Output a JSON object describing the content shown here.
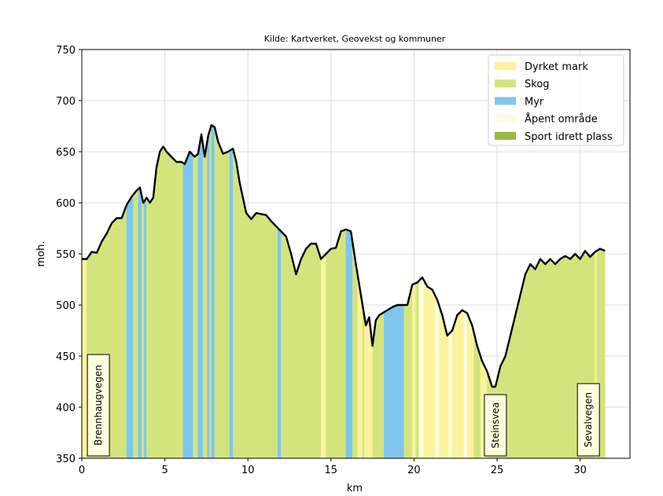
{
  "chart_data": {
    "type": "area",
    "title": "Kilde: Kartverket, Geovekst og kommuner",
    "xlabel": "km",
    "ylabel": "moh.",
    "xlim": [
      0,
      33
    ],
    "ylim": [
      350,
      750
    ],
    "xticks": [
      0,
      5,
      10,
      15,
      20,
      25,
      30
    ],
    "yticks": [
      350,
      400,
      450,
      500,
      550,
      600,
      650,
      700,
      750
    ],
    "grid": true,
    "legend_position": "top-right",
    "legend": [
      {
        "label": "Dyrket mark",
        "color": "#fbf39e"
      },
      {
        "label": "Skog",
        "color": "#d4e47c"
      },
      {
        "label": "Myr",
        "color": "#7ec6ef"
      },
      {
        "label": "Åpent område",
        "color": "#fdfde0"
      },
      {
        "label": "Sport idrett plass",
        "color": "#9cb840"
      }
    ],
    "profile": {
      "x": [
        0,
        0.3,
        0.6,
        0.9,
        1.2,
        1.5,
        1.8,
        2.1,
        2.4,
        2.7,
        3.0,
        3.3,
        3.5,
        3.7,
        3.9,
        4.1,
        4.3,
        4.5,
        4.7,
        4.9,
        5.1,
        5.4,
        5.7,
        6.0,
        6.2,
        6.5,
        6.8,
        7.0,
        7.2,
        7.4,
        7.6,
        7.8,
        8.0,
        8.2,
        8.5,
        8.8,
        9.1,
        9.3,
        9.5,
        9.7,
        9.9,
        10.2,
        10.5,
        10.8,
        11.1,
        11.4,
        11.7,
        12.0,
        12.3,
        12.6,
        12.9,
        13.2,
        13.5,
        13.8,
        14.1,
        14.4,
        14.7,
        15.0,
        15.3,
        15.6,
        15.9,
        16.2,
        16.5,
        16.8,
        17.1,
        17.3,
        17.5,
        17.7,
        17.9,
        18.1,
        18.4,
        18.7,
        19.0,
        19.3,
        19.6,
        19.9,
        20.2,
        20.5,
        20.8,
        21.1,
        21.4,
        21.7,
        22.0,
        22.3,
        22.6,
        22.9,
        23.2,
        23.5,
        23.8,
        24.1,
        24.4,
        24.7,
        24.9,
        25.2,
        25.5,
        25.8,
        26.1,
        26.4,
        26.7,
        27.0,
        27.3,
        27.6,
        27.9,
        28.2,
        28.5,
        28.8,
        29.1,
        29.4,
        29.7,
        30.0,
        30.3,
        30.6,
        30.9,
        31.2,
        31.5
      ],
      "y": [
        545,
        545,
        552,
        551,
        562,
        570,
        580,
        585,
        585,
        598,
        606,
        612,
        615,
        600,
        605,
        600,
        605,
        635,
        650,
        655,
        650,
        645,
        640,
        640,
        638,
        650,
        645,
        648,
        667,
        645,
        665,
        676,
        674,
        660,
        648,
        650,
        653,
        640,
        620,
        605,
        590,
        584,
        590,
        589,
        588,
        582,
        577,
        572,
        567,
        550,
        530,
        545,
        555,
        560,
        560,
        545,
        550,
        555,
        556,
        572,
        574,
        572,
        540,
        510,
        480,
        488,
        460,
        485,
        490,
        492,
        495,
        498,
        500,
        500,
        500,
        520,
        522,
        527,
        518,
        515,
        505,
        490,
        470,
        475,
        490,
        495,
        492,
        480,
        460,
        445,
        435,
        420,
        420,
        440,
        450,
        470,
        490,
        510,
        530,
        540,
        535,
        545,
        540,
        545,
        540,
        545,
        548,
        545,
        550,
        545,
        553,
        547,
        552,
        555,
        553
      ]
    },
    "land_cover": [
      {
        "class": "Dyrket mark",
        "from": 0,
        "to": 0.3
      },
      {
        "class": "Skog",
        "from": 0.3,
        "to": 2.7
      },
      {
        "class": "Myr",
        "from": 2.7,
        "to": 3.1
      },
      {
        "class": "Skog",
        "from": 3.1,
        "to": 3.4
      },
      {
        "class": "Myr",
        "from": 3.4,
        "to": 3.6
      },
      {
        "class": "Skog",
        "from": 3.6,
        "to": 3.75
      },
      {
        "class": "Myr",
        "from": 3.75,
        "to": 3.9
      },
      {
        "class": "Skog",
        "from": 3.9,
        "to": 6.1
      },
      {
        "class": "Myr",
        "from": 6.1,
        "to": 6.7
      },
      {
        "class": "Skog",
        "from": 6.7,
        "to": 7.0
      },
      {
        "class": "Myr",
        "from": 7.0,
        "to": 7.3
      },
      {
        "class": "Skog",
        "from": 7.3,
        "to": 7.55
      },
      {
        "class": "Myr",
        "from": 7.55,
        "to": 7.7
      },
      {
        "class": "Skog",
        "from": 7.7,
        "to": 7.8
      },
      {
        "class": "Myr",
        "from": 7.8,
        "to": 8.0
      },
      {
        "class": "Skog",
        "from": 8.0,
        "to": 8.9
      },
      {
        "class": "Myr",
        "from": 8.9,
        "to": 9.1
      },
      {
        "class": "Skog",
        "from": 9.1,
        "to": 11.8
      },
      {
        "class": "Myr",
        "from": 11.8,
        "to": 12.0
      },
      {
        "class": "Skog",
        "from": 12.0,
        "to": 14.4
      },
      {
        "class": "Dyrket mark",
        "from": 14.4,
        "to": 14.7
      },
      {
        "class": "Skog",
        "from": 14.7,
        "to": 15.9
      },
      {
        "class": "Myr",
        "from": 15.9,
        "to": 16.3
      },
      {
        "class": "Skog",
        "from": 16.3,
        "to": 16.6
      },
      {
        "class": "Dyrket mark",
        "from": 16.6,
        "to": 16.9
      },
      {
        "class": "Skog",
        "from": 16.9,
        "to": 17.0
      },
      {
        "class": "Dyrket mark",
        "from": 17.0,
        "to": 17.5
      },
      {
        "class": "Skog",
        "from": 17.5,
        "to": 18.2
      },
      {
        "class": "Myr",
        "from": 18.2,
        "to": 19.4
      },
      {
        "class": "Skog",
        "from": 19.4,
        "to": 19.9
      },
      {
        "class": "Dyrket mark",
        "from": 19.9,
        "to": 20.1
      },
      {
        "class": "Skog",
        "from": 20.1,
        "to": 20.3
      },
      {
        "class": "Åpent område",
        "from": 20.3,
        "to": 20.6
      },
      {
        "class": "Dyrket mark",
        "from": 20.6,
        "to": 21.3
      },
      {
        "class": "Åpent område",
        "from": 21.3,
        "to": 21.5
      },
      {
        "class": "Dyrket mark",
        "from": 21.5,
        "to": 22.1
      },
      {
        "class": "Åpent område",
        "from": 22.1,
        "to": 22.3
      },
      {
        "class": "Dyrket mark",
        "from": 22.3,
        "to": 23.0
      },
      {
        "class": "Åpent område",
        "from": 23.0,
        "to": 23.2
      },
      {
        "class": "Dyrket mark",
        "from": 23.2,
        "to": 23.6
      },
      {
        "class": "Skog",
        "from": 23.6,
        "to": 24.0
      },
      {
        "class": "Dyrket mark",
        "from": 24.0,
        "to": 24.4
      },
      {
        "class": "Skog",
        "from": 24.4,
        "to": 30.9
      },
      {
        "class": "Dyrket mark",
        "from": 30.9,
        "to": 31.0
      },
      {
        "class": "Skog",
        "from": 31.0,
        "to": 31.5
      }
    ],
    "place_markers": [
      {
        "label": "Brennhaugvegen",
        "x": 1.0
      },
      {
        "label": "Steinsvea",
        "x": 24.9
      },
      {
        "label": "Sevalvegen",
        "x": 30.5
      }
    ]
  }
}
